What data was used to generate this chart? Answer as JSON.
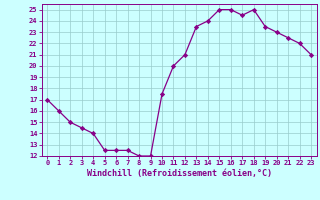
{
  "x": [
    0,
    1,
    2,
    3,
    4,
    5,
    6,
    7,
    8,
    9,
    10,
    11,
    12,
    13,
    14,
    15,
    16,
    17,
    18,
    19,
    20,
    21,
    22,
    23
  ],
  "y": [
    17.0,
    16.0,
    15.0,
    14.5,
    14.0,
    12.5,
    12.5,
    12.5,
    12.0,
    12.0,
    17.5,
    20.0,
    21.0,
    23.5,
    24.0,
    25.0,
    25.0,
    24.5,
    25.0,
    23.5,
    23.0,
    22.5,
    22.0,
    21.0
  ],
  "xlim": [
    -0.5,
    23.5
  ],
  "ylim": [
    12,
    25.5
  ],
  "xticks": [
    0,
    1,
    2,
    3,
    4,
    5,
    6,
    7,
    8,
    9,
    10,
    11,
    12,
    13,
    14,
    15,
    16,
    17,
    18,
    19,
    20,
    21,
    22,
    23
  ],
  "yticks": [
    12,
    13,
    14,
    15,
    16,
    17,
    18,
    19,
    20,
    21,
    22,
    23,
    24,
    25
  ],
  "xlabel": "Windchill (Refroidissement éolien,°C)",
  "line_color": "#880088",
  "marker": "D",
  "marker_size": 2.2,
  "bg_color": "#ccffff",
  "grid_color": "#99cccc",
  "tick_color": "#880088",
  "label_color": "#880088",
  "tick_fontsize": 5.0,
  "xlabel_fontsize": 6.0,
  "linewidth": 0.9
}
